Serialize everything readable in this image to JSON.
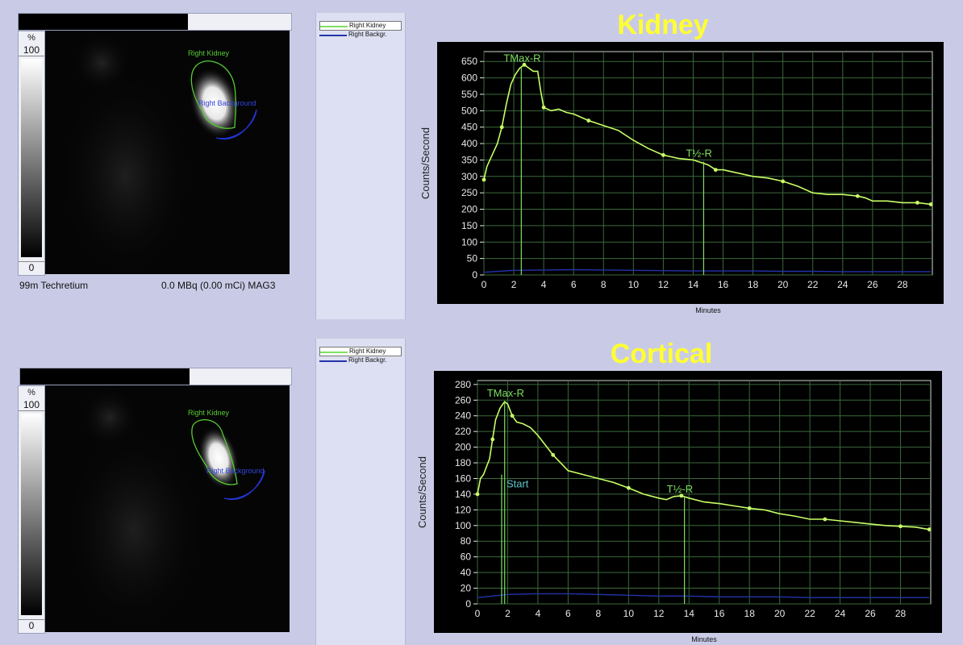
{
  "legend": {
    "kidney": {
      "label": "Right Kidney",
      "color": "#7fe060"
    },
    "background": {
      "label": "Right Backgr.",
      "color": "#2233aa"
    }
  },
  "scale": {
    "percent_label": "%",
    "max_label": "100",
    "min_label": "0"
  },
  "roi_labels": {
    "kidney": "Right Kidney",
    "background": "Right Background"
  },
  "panels": [
    {
      "id": "kidney",
      "caption_left": "99m Techretium",
      "caption_right": "0.0 MBq (0.00 mCi) MAG3"
    },
    {
      "id": "cortical",
      "caption_left": "",
      "caption_right": ""
    }
  ],
  "chart_data": [
    {
      "type": "line",
      "title": "Kidney",
      "xlabel": "Minutes",
      "ylabel": "Counts/Second",
      "xlim": [
        0,
        30
      ],
      "ylim": [
        0,
        680
      ],
      "xticks": [
        0,
        2,
        4,
        6,
        8,
        10,
        12,
        14,
        16,
        18,
        20,
        22,
        24,
        26,
        28
      ],
      "yticks": [
        0,
        50,
        100,
        150,
        200,
        250,
        300,
        350,
        400,
        450,
        500,
        550,
        600,
        650
      ],
      "grid": true,
      "background": "#000000",
      "grid_color": "#3a6a3a",
      "series": [
        {
          "name": "Right Kidney",
          "color": "#c8ff66",
          "x": [
            0,
            0.2,
            0.4,
            0.6,
            0.9,
            1.2,
            1.5,
            1.8,
            2.1,
            2.4,
            2.7,
            3.0,
            3.3,
            3.6,
            3.8,
            4.0,
            4.5,
            5.0,
            5.5,
            6.0,
            7,
            8,
            9,
            10,
            11,
            12,
            12.5,
            13,
            14,
            15,
            15.5,
            16,
            17,
            18,
            19,
            20,
            21,
            22,
            23,
            24,
            25,
            25.5,
            26,
            27,
            28,
            29,
            29.9
          ],
          "y": [
            290,
            330,
            350,
            370,
            400,
            450,
            520,
            580,
            610,
            630,
            640,
            630,
            620,
            620,
            560,
            510,
            500,
            505,
            495,
            490,
            470,
            455,
            440,
            410,
            385,
            365,
            360,
            355,
            350,
            335,
            320,
            320,
            310,
            300,
            295,
            285,
            270,
            250,
            245,
            245,
            240,
            235,
            225,
            225,
            220,
            220,
            215
          ]
        },
        {
          "name": "Right Backgr.",
          "color": "#2233aa",
          "x": [
            0,
            2,
            4,
            6,
            8,
            10,
            12,
            14,
            16,
            18,
            20,
            22,
            24,
            26,
            28,
            29.9
          ],
          "y": [
            8,
            14,
            15,
            16,
            15,
            14,
            13,
            12,
            12,
            12,
            11,
            11,
            10,
            10,
            10,
            10
          ]
        }
      ],
      "markers": [
        {
          "label": "TMax-R",
          "x": 2.5,
          "y": 635
        },
        {
          "label": "T½-R",
          "x": 14.7,
          "y": 345
        }
      ]
    },
    {
      "type": "line",
      "title": "Cortical",
      "xlabel": "Minutes",
      "ylabel": "Counts/Second",
      "xlim": [
        0,
        30
      ],
      "ylim": [
        0,
        285
      ],
      "xticks": [
        0,
        2,
        4,
        6,
        8,
        10,
        12,
        14,
        16,
        18,
        20,
        22,
        24,
        26,
        28
      ],
      "yticks": [
        0,
        20,
        40,
        60,
        80,
        100,
        120,
        140,
        160,
        180,
        200,
        220,
        240,
        260,
        280
      ],
      "grid": true,
      "background": "#000000",
      "grid_color": "#3a6a3a",
      "series": [
        {
          "name": "Right Kidney",
          "color": "#c8ff66",
          "x": [
            0,
            0.2,
            0.4,
            0.6,
            0.8,
            1.0,
            1.2,
            1.5,
            1.8,
            2.0,
            2.3,
            2.6,
            3.0,
            3.5,
            4,
            5,
            6,
            7,
            8,
            9,
            10,
            11,
            12,
            12.5,
            13,
            13.5,
            14,
            15,
            16,
            17,
            18,
            19,
            20,
            21,
            22,
            23,
            24,
            25,
            26,
            27,
            28,
            29,
            29.9
          ],
          "y": [
            140,
            160,
            165,
            175,
            185,
            210,
            235,
            250,
            258,
            255,
            240,
            232,
            230,
            225,
            215,
            190,
            170,
            165,
            160,
            155,
            148,
            140,
            135,
            133,
            137,
            138,
            135,
            130,
            128,
            125,
            122,
            120,
            115,
            112,
            108,
            108,
            106,
            104,
            102,
            100,
            99,
            98,
            95
          ]
        },
        {
          "name": "Right Backgr.",
          "color": "#2233aa",
          "x": [
            0,
            2,
            4,
            6,
            8,
            10,
            12,
            14,
            16,
            18,
            20,
            22,
            24,
            26,
            28,
            29.9
          ],
          "y": [
            8,
            12,
            13,
            13,
            12,
            11,
            10,
            10,
            9,
            9,
            9,
            8,
            8,
            8,
            8,
            8
          ]
        }
      ],
      "markers": [
        {
          "label": "TMax-R",
          "x": 1.8,
          "y": 258
        },
        {
          "label": "Start",
          "x": 1.6,
          "y": 155
        },
        {
          "label": "T½-R",
          "x": 13.7,
          "y": 136
        }
      ]
    }
  ]
}
